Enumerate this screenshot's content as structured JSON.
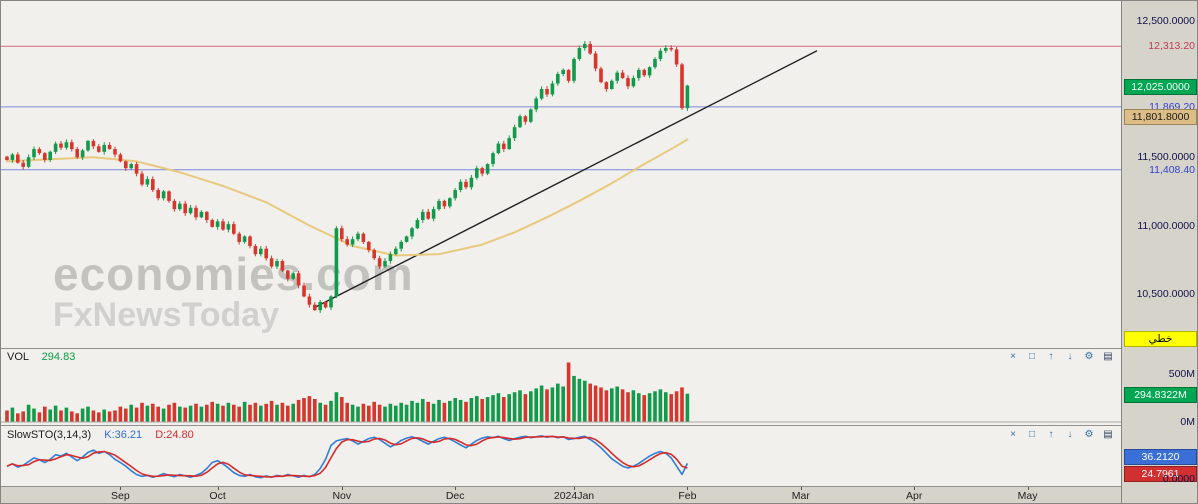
{
  "watermark": {
    "line1": "economies.com",
    "line2": "FxNewsToday"
  },
  "vol_header": {
    "title": "VOL",
    "value": "294.83"
  },
  "sto_header": {
    "title": "SlowSTO(3,14,3)",
    "k": "K:36.21",
    "d": "D:24.80"
  },
  "pane_toolbar": {
    "icons": [
      {
        "name": "close-icon",
        "glyph": "×",
        "color": "#2e6da4"
      },
      {
        "name": "popout-window-icon",
        "glyph": "□",
        "color": "#2e6da4"
      },
      {
        "name": "move-pane-up-icon",
        "glyph": "↑",
        "color": "#2e6da4"
      },
      {
        "name": "move-pane-down-icon",
        "glyph": "↓",
        "color": "#2e6da4"
      },
      {
        "name": "settings-gear-icon",
        "glyph": "⚙",
        "color": "#2e6da4"
      },
      {
        "name": "menu-icon",
        "glyph": "▤",
        "color": "#33415c"
      }
    ]
  },
  "axis_panel": {
    "price_labels": [
      {
        "text": "12,500.0000",
        "value": 12500
      },
      {
        "text": "11,500.0000",
        "value": 11500
      },
      {
        "text": "11,000.0000",
        "value": 11000
      },
      {
        "text": "10,500.0000",
        "value": 10500
      }
    ],
    "level_labels": [
      {
        "text": "12,313.20",
        "value": 12313.2,
        "color": "#c23a52"
      },
      {
        "text": "11,869.20",
        "value": 11869.2,
        "color": "#2f3fd0"
      },
      {
        "text": "11,408.40",
        "value": 11408.4,
        "color": "#2f3fd0"
      }
    ],
    "price_badges": [
      {
        "text": "12,025.0000",
        "value": 12025,
        "bg": "#00a651",
        "fg": "#ffffff"
      },
      {
        "text": "11,801.8000",
        "value": 11801.8,
        "bg": "#dcbd85",
        "fg": "#1a1a1a"
      }
    ],
    "scale_badge": {
      "text": "خطي",
      "bg": "#ffff00",
      "fg": "#000000"
    },
    "volume_labels": [
      {
        "text": "500M",
        "value": 500
      },
      {
        "text": "0M",
        "value": 0
      }
    ],
    "volume_badge": {
      "text": "294.8322M",
      "value": 294.8322,
      "bg": "#00a651",
      "fg": "#ffffff"
    },
    "sto_badges": [
      {
        "text": "36.2120",
        "value": 36.212,
        "bg": "#3a6fd8",
        "fg": "#ffffff"
      },
      {
        "text": "24.7961",
        "value": 24.7961,
        "bg": "#d03030",
        "fg": "#ffffff"
      }
    ],
    "sto_zero_label": {
      "text": "0.0000",
      "value": 0
    }
  },
  "chart_data": {
    "type": "candlestick",
    "x_axis": {
      "months": [
        {
          "label": "Sep",
          "i": 21
        },
        {
          "label": "Oct",
          "i": 39
        },
        {
          "label": "Nov",
          "i": 62
        },
        {
          "label": "Dec",
          "i": 83
        },
        {
          "label": "2024Jan",
          "i": 105
        },
        {
          "label": "Feb",
          "i": 126
        },
        {
          "label": "Mar",
          "i": 147
        },
        {
          "label": "Apr",
          "i": 168
        },
        {
          "label": "May",
          "i": 189
        }
      ]
    },
    "price_pane": {
      "ylim": [
        10110,
        12630
      ],
      "up_color": "#119a49",
      "down_color": "#d6362b",
      "hlines": [
        {
          "value": 12313.2,
          "color": "#d4697c"
        },
        {
          "value": 11869.2,
          "color": "#7b86dd"
        },
        {
          "value": 11408.4,
          "color": "#7b86dd"
        }
      ],
      "trendline": {
        "i1": 57,
        "p1": 10400,
        "i2": 150,
        "p2": 12280,
        "color": "#222222"
      },
      "ma": {
        "color": "#e8c97d",
        "points": [
          [
            0,
            11470
          ],
          [
            8,
            11485
          ],
          [
            16,
            11500
          ],
          [
            24,
            11470
          ],
          [
            32,
            11390
          ],
          [
            40,
            11290
          ],
          [
            48,
            11170
          ],
          [
            56,
            11000
          ],
          [
            64,
            10850
          ],
          [
            72,
            10780
          ],
          [
            80,
            10790
          ],
          [
            88,
            10860
          ],
          [
            94,
            10950
          ],
          [
            100,
            11060
          ],
          [
            106,
            11180
          ],
          [
            112,
            11310
          ],
          [
            118,
            11450
          ],
          [
            123,
            11560
          ],
          [
            126,
            11630
          ]
        ]
      },
      "closes": [
        11480,
        11520,
        11460,
        11430,
        11500,
        11560,
        11530,
        11480,
        11540,
        11600,
        11570,
        11610,
        11560,
        11500,
        11550,
        11620,
        11580,
        11540,
        11590,
        11560,
        11520,
        11470,
        11420,
        11450,
        11380,
        11300,
        11340,
        11260,
        11200,
        11250,
        11180,
        11120,
        11160,
        11090,
        11130,
        11060,
        11100,
        11040,
        10990,
        11030,
        10970,
        11010,
        10940,
        10880,
        10920,
        10850,
        10790,
        10830,
        10760,
        10700,
        10740,
        10670,
        10610,
        10650,
        10560,
        10480,
        10420,
        10380,
        10440,
        10400,
        10480,
        10980,
        10900,
        10860,
        10900,
        10940,
        10880,
        10820,
        10760,
        10700,
        10740,
        10790,
        10830,
        10880,
        10920,
        10980,
        11040,
        11100,
        11050,
        11120,
        11180,
        11140,
        11200,
        11260,
        11320,
        11280,
        11350,
        11420,
        11380,
        11450,
        11530,
        11600,
        11560,
        11640,
        11720,
        11800,
        11760,
        11850,
        11930,
        12000,
        11960,
        12040,
        12110,
        12140,
        12060,
        12220,
        12300,
        12330,
        12260,
        12150,
        12050,
        12000,
        12060,
        12120,
        12080,
        12020,
        12080,
        12140,
        12100,
        12160,
        12220,
        12280,
        12300,
        12290,
        12180,
        11860,
        12025
      ],
      "last_close": 12025
    },
    "volume_pane": {
      "axis_max": 500,
      "unit": "M",
      "values": [
        120,
        150,
        90,
        110,
        180,
        140,
        100,
        160,
        130,
        170,
        120,
        150,
        110,
        90,
        140,
        160,
        120,
        100,
        130,
        110,
        120,
        160,
        140,
        180,
        150,
        200,
        170,
        190,
        160,
        140,
        180,
        200,
        160,
        150,
        170,
        190,
        160,
        180,
        210,
        190,
        170,
        200,
        180,
        160,
        210,
        180,
        200,
        170,
        190,
        220,
        180,
        200,
        170,
        190,
        230,
        250,
        270,
        240,
        200,
        180,
        220,
        310,
        260,
        200,
        180,
        160,
        190,
        170,
        210,
        180,
        160,
        190,
        170,
        200,
        180,
        220,
        200,
        240,
        210,
        190,
        230,
        200,
        220,
        250,
        230,
        210,
        250,
        270,
        240,
        260,
        280,
        300,
        260,
        290,
        310,
        330,
        290,
        320,
        350,
        380,
        340,
        360,
        400,
        370,
        620,
        480,
        450,
        430,
        400,
        380,
        360,
        330,
        350,
        370,
        340,
        310,
        330,
        300,
        280,
        300,
        320,
        340,
        310,
        290,
        320,
        360,
        295
      ],
      "last_value": 294.8322
    },
    "sto_pane": {
      "range": [
        0,
        100
      ],
      "k_color": "#2f7ed8",
      "d_color": "#d62b2b",
      "k_last": 36.212,
      "d_last": 24.7961,
      "k_values": [
        30,
        35,
        28,
        32,
        40,
        48,
        44,
        38,
        45,
        55,
        52,
        58,
        50,
        42,
        50,
        60,
        65,
        58,
        62,
        55,
        45,
        38,
        30,
        20,
        12,
        8,
        10,
        6,
        9,
        14,
        10,
        7,
        12,
        9,
        6,
        10,
        15,
        25,
        38,
        42,
        35,
        26,
        16,
        10,
        8,
        12,
        7,
        5,
        9,
        6,
        10,
        8,
        12,
        9,
        6,
        10,
        7,
        12,
        25,
        45,
        75,
        85,
        88,
        90,
        85,
        78,
        84,
        90,
        93,
        88,
        80,
        72,
        78,
        86,
        91,
        94,
        90,
        84,
        78,
        84,
        90,
        93,
        89,
        83,
        76,
        70,
        78,
        86,
        91,
        94,
        92,
        95,
        90,
        86,
        90,
        93,
        95,
        92,
        94,
        96,
        93,
        95,
        92,
        94,
        88,
        90,
        93,
        95,
        88,
        80,
        70,
        58,
        46,
        38,
        30,
        26,
        30,
        36,
        44,
        52,
        58,
        62,
        58,
        48,
        30,
        12,
        36.21
      ]
    }
  }
}
